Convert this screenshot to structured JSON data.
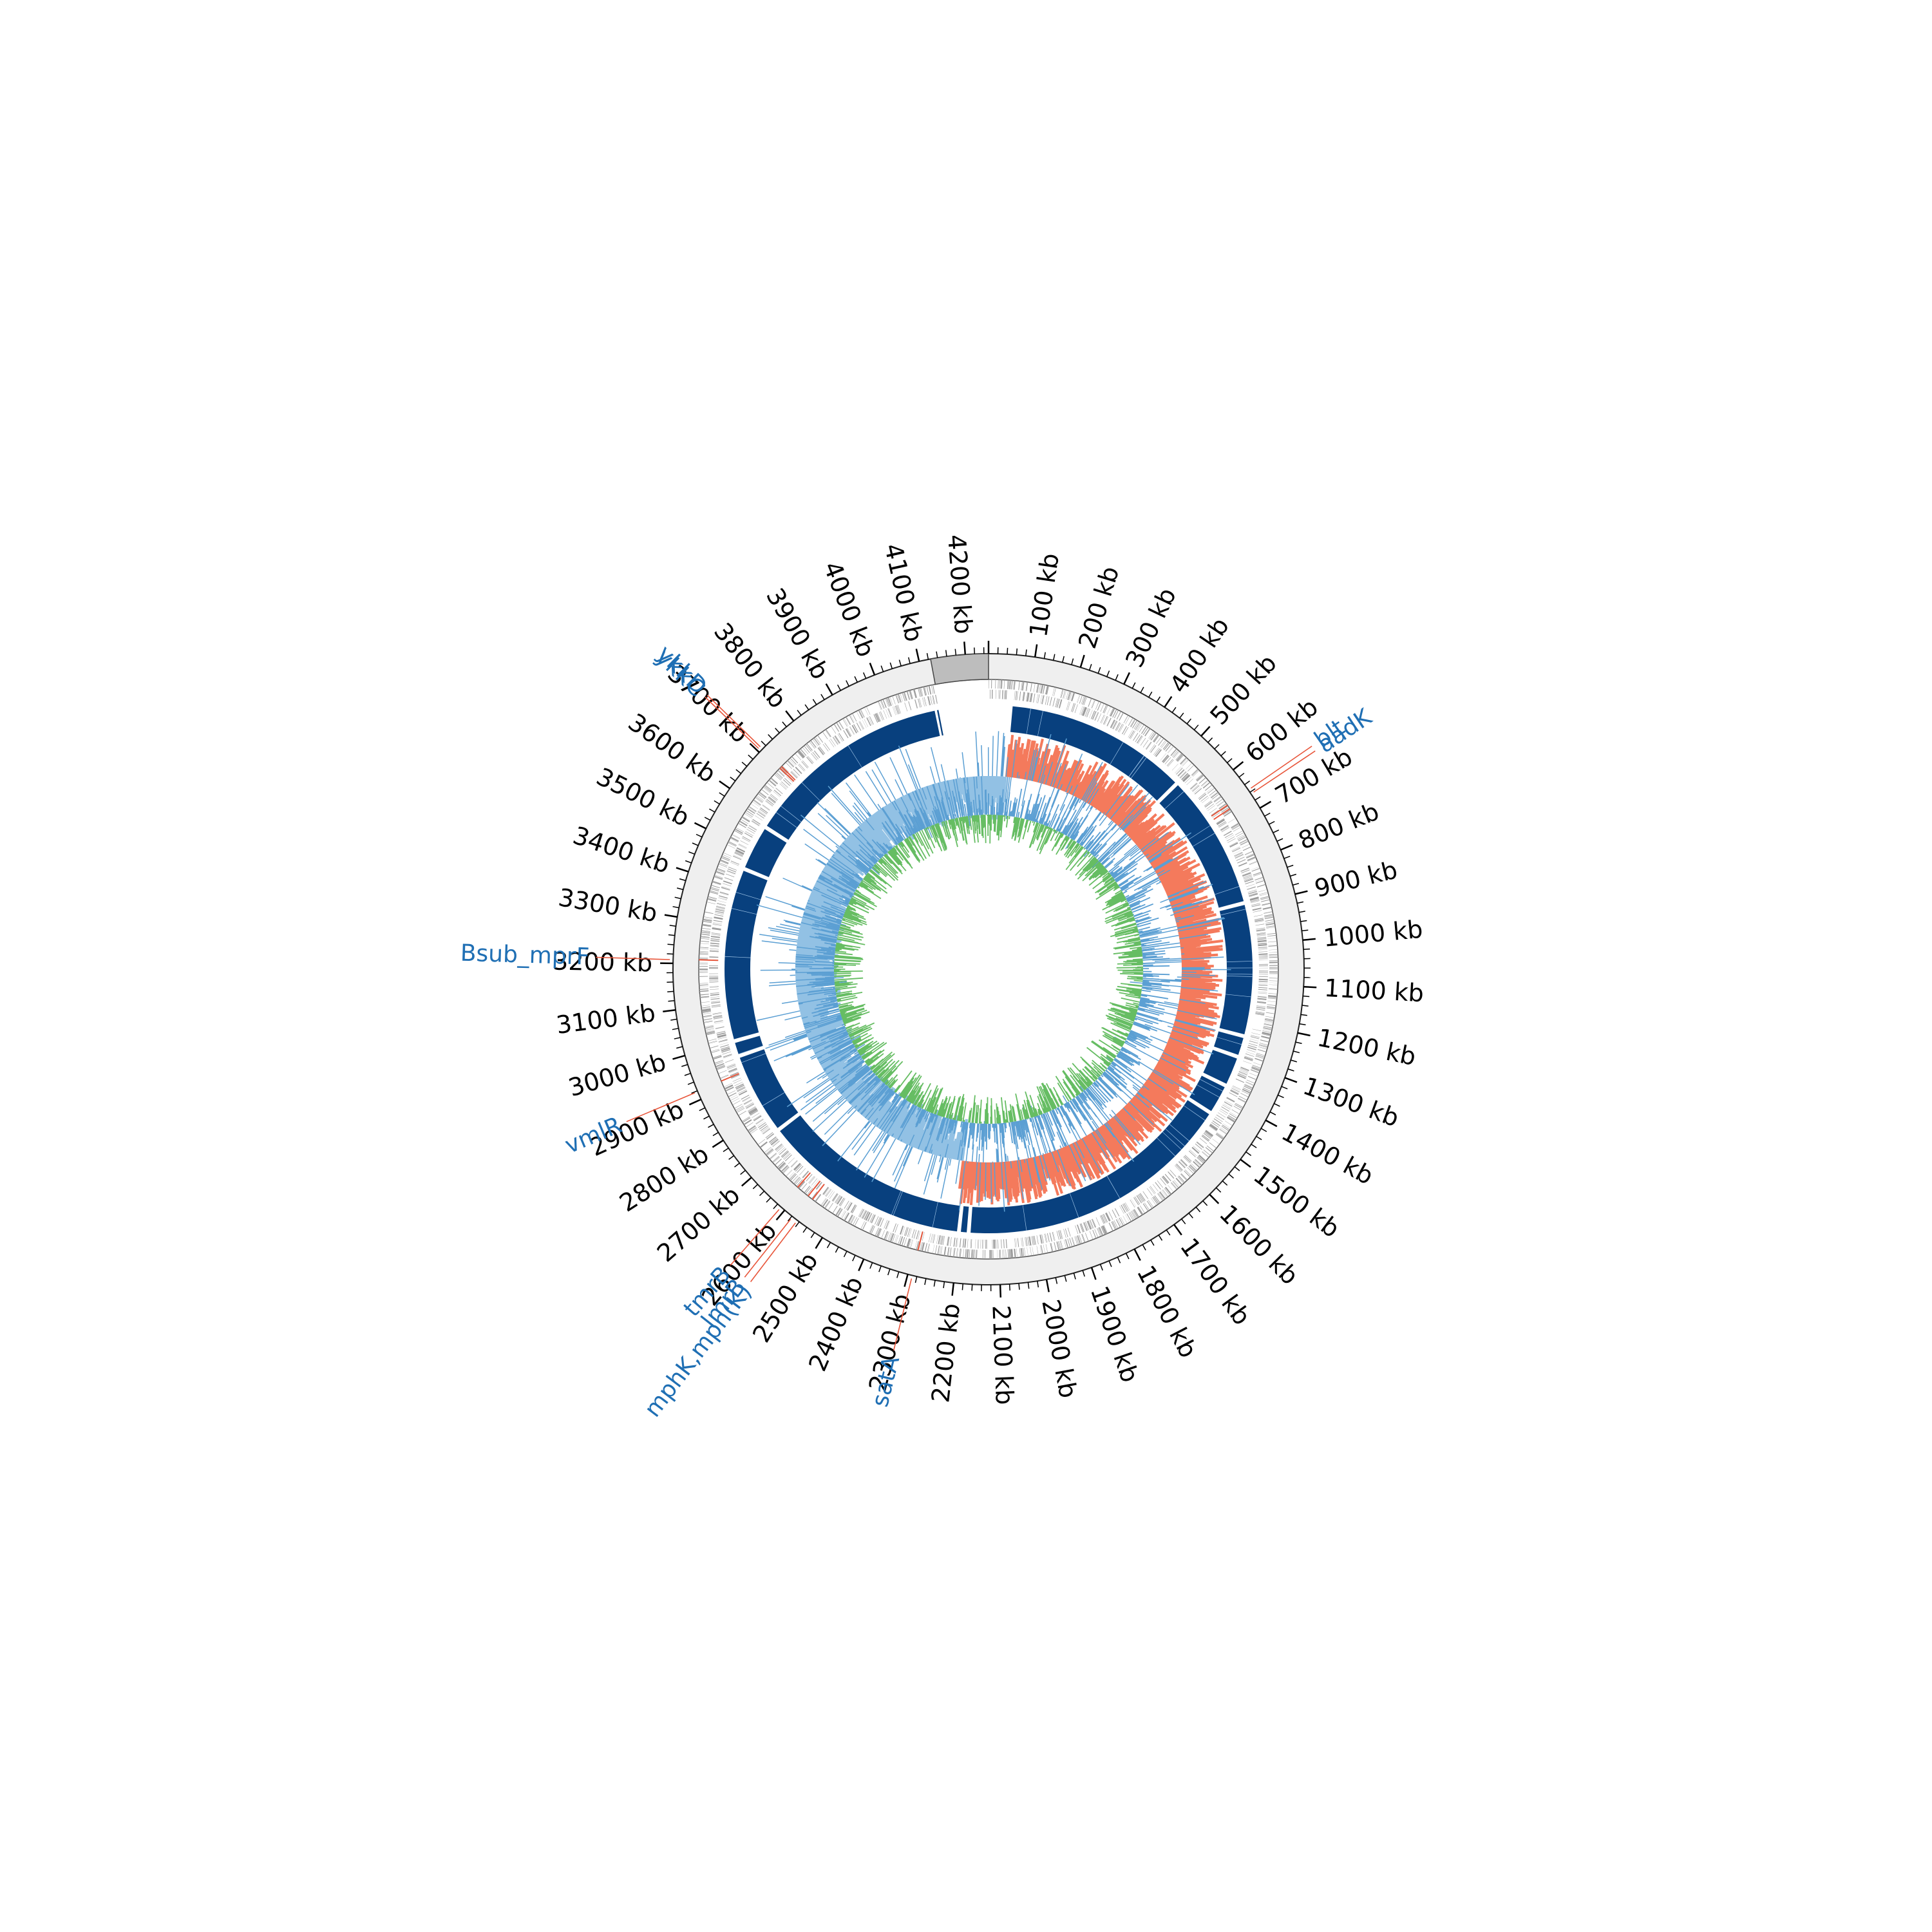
{
  "genome": {
    "total_kb": 4250,
    "tick_step_kb": 100,
    "tick_unit": "kb",
    "shaded_region_kb": [
      4125,
      4250
    ]
  },
  "tick_labels": [
    "100 kb",
    "200 kb",
    "300 kb",
    "400 kb",
    "500 kb",
    "600 kb",
    "700 kb",
    "800 kb",
    "900 kb",
    "1000 kb",
    "1100 kb",
    "1200 kb",
    "1300 kb",
    "1400 kb",
    "1500 kb",
    "1600 kb",
    "1700 kb",
    "1800 kb",
    "1900 kb",
    "2000 kb",
    "2100 kb",
    "2200 kb",
    "2300 kb",
    "2400 kb",
    "2500 kb",
    "2600 kb",
    "2700 kb",
    "2800 kb",
    "2900 kb",
    "3000 kb",
    "3100 kb",
    "3200 kb",
    "3300 kb",
    "3400 kb",
    "3500 kb",
    "3600 kb",
    "3700 kb",
    "3800 kb",
    "3900 kb",
    "4000 kb",
    "4100 kb",
    "4200 kb"
  ],
  "gene_labels": [
    {
      "name": "blt",
      "position_kb": 654
    },
    {
      "name": "aadK",
      "position_kb": 664
    },
    {
      "name": "satA",
      "position_kb": 2290
    },
    {
      "name": "mphK,mph(K)",
      "position_kb": 2565
    },
    {
      "name": "lmrB",
      "position_kb": 2578
    },
    {
      "name": "tmrB",
      "position_kb": 2610
    },
    {
      "name": "vmlR",
      "position_kb": 2918
    },
    {
      "name": "Bsub_mprF",
      "position_kb": 3208
    },
    {
      "name": "ykkC",
      "position_kb": 3705
    },
    {
      "name": "ykkD",
      "position_kb": 3710
    }
  ],
  "contig_gaps_kb": [
    45,
    535,
    890,
    1235,
    1290,
    1370,
    1450,
    2175,
    2200,
    2745,
    2960,
    3000,
    3450,
    3570,
    4115
  ],
  "gc_skew_sign_changes_kb": [
    60,
    2215
  ],
  "colors": {
    "ring_background": "#efefef",
    "shaded_region": "#bdbdbd",
    "gene_ticks": "#9a9a9a",
    "contig_band": "#08407e",
    "skew_positive": "#f47a5c",
    "skew_negative": "#92c1e4",
    "skew_spike": "#5b9fd3",
    "gc_content": "#66bd63",
    "gc_content_spike": "#5b9fd3",
    "resistance_marker": "#e8553a",
    "gene_label": "#1f6fb4"
  }
}
